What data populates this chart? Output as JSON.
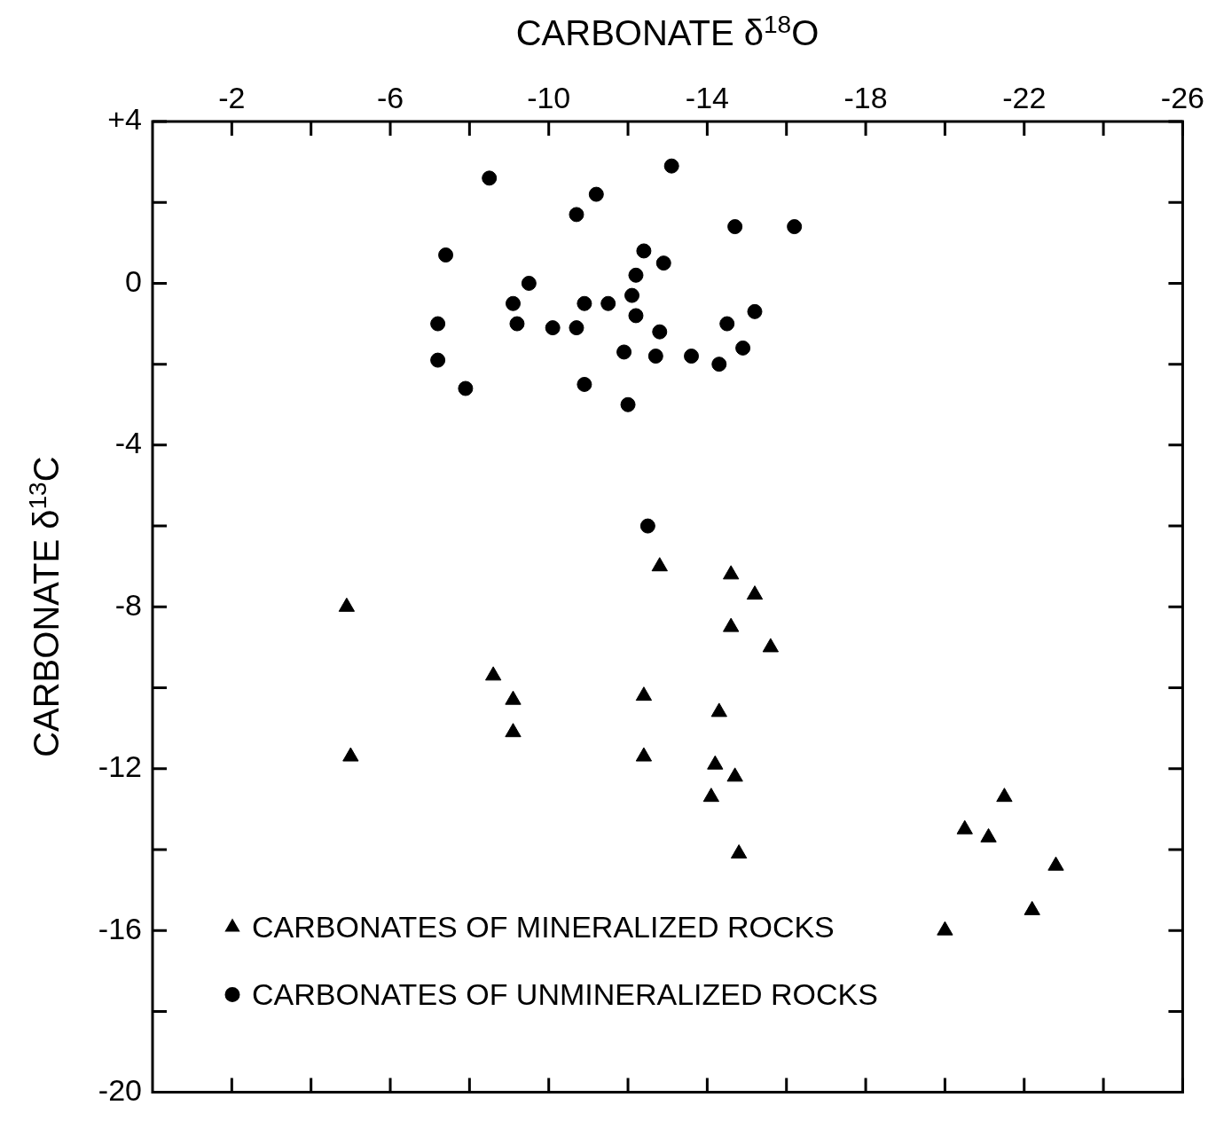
{
  "chart_data": {
    "type": "scatter",
    "xlabel": "CARBONATE δ$^{18}$O",
    "ylabel": "CARBONATE δ$^{13}$C",
    "xlim": [
      0,
      -26
    ],
    "xticks": [
      {
        "value": -2,
        "label": "-2"
      },
      {
        "value": -4,
        "label": null
      },
      {
        "value": -6,
        "label": "-6"
      },
      {
        "value": -8,
        "label": null
      },
      {
        "value": -10,
        "label": "-10"
      },
      {
        "value": -12,
        "label": null
      },
      {
        "value": -14,
        "label": "-14"
      },
      {
        "value": -16,
        "label": null
      },
      {
        "value": -18,
        "label": "-18"
      },
      {
        "value": -20,
        "label": null
      },
      {
        "value": -22,
        "label": "-22"
      },
      {
        "value": -24,
        "label": null
      },
      {
        "value": -26,
        "label": "-26"
      }
    ],
    "ylim": [
      -20,
      4
    ],
    "yticks": [
      {
        "value": 4,
        "label": "+4"
      },
      {
        "value": 2,
        "label": null
      },
      {
        "value": 0,
        "label": "0"
      },
      {
        "value": -2,
        "label": null
      },
      {
        "value": -4,
        "label": "-4"
      },
      {
        "value": -6,
        "label": null
      },
      {
        "value": -8,
        "label": "-8"
      },
      {
        "value": -10,
        "label": null
      },
      {
        "value": -12,
        "label": "-12"
      },
      {
        "value": -14,
        "label": null
      },
      {
        "value": -16,
        "label": "-16"
      },
      {
        "value": -18,
        "label": null
      },
      {
        "value": -20,
        "label": "-20"
      }
    ],
    "grid": false,
    "legend": "bottom left",
    "series": [
      {
        "name": "CARBONATES OF MINERALIZED ROCKS",
        "color": "#000000",
        "marker": "triangle",
        "x": [
          -4.9,
          -12.8,
          -14.6,
          -15.2,
          -14.6,
          -15.6,
          -8.6,
          -9.1,
          -9.1,
          -12.4,
          -14.3,
          -5.0,
          -12.4,
          -14.2,
          -14.7,
          -14.1,
          -21.5,
          -20.5,
          -21.1,
          -14.8,
          -22.8,
          -22.2,
          -20.0
        ],
        "values": [
          -8.0,
          -7.0,
          -7.2,
          -7.7,
          -8.5,
          -9.0,
          -9.7,
          -10.3,
          -11.1,
          -10.2,
          -10.6,
          -11.7,
          -11.7,
          -11.9,
          -12.2,
          -12.7,
          -12.7,
          -13.5,
          -13.7,
          -14.1,
          -14.4,
          -15.5,
          -16.0
        ]
      },
      {
        "name": "CARBONATES OF UNMINERALIZED ROCKS",
        "color": "#000000",
        "marker": "circle",
        "x": [
          -8.5,
          -13.1,
          -11.2,
          -10.7,
          -14.7,
          -16.2,
          -7.4,
          -12.4,
          -12.9,
          -12.2,
          -9.5,
          -12.1,
          -9.1,
          -10.9,
          -11.5,
          -12.2,
          -15.2,
          -7.2,
          -9.2,
          -10.1,
          -10.7,
          -12.8,
          -14.5,
          -7.2,
          -11.9,
          -12.7,
          -13.6,
          -14.3,
          -14.9,
          -7.9,
          -10.9,
          -12.0,
          -12.5
        ],
        "values": [
          2.6,
          2.9,
          2.2,
          1.7,
          1.4,
          1.4,
          0.7,
          0.8,
          0.5,
          0.2,
          0,
          -0.3,
          -0.5,
          -0.5,
          -0.5,
          -0.8,
          -0.7,
          -1.0,
          -1.0,
          -1.1,
          -1.1,
          -1.2,
          -1.0,
          -1.9,
          -1.7,
          -1.8,
          -1.8,
          -2.0,
          -1.6,
          -2.6,
          -2.5,
          -3.0,
          -6.0
        ]
      }
    ]
  }
}
